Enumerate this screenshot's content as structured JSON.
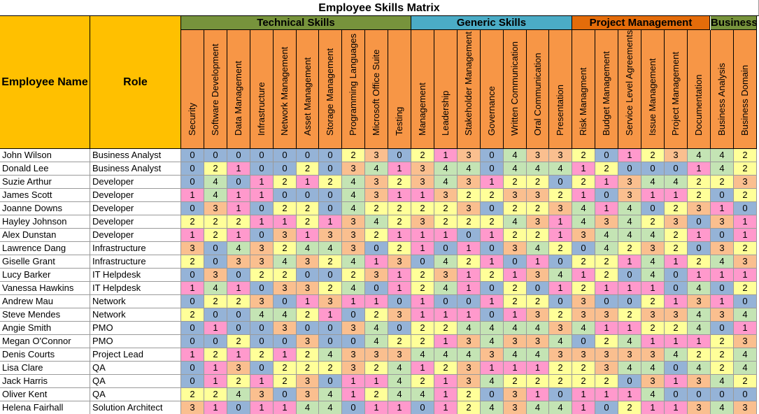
{
  "title": "Employee Skills Matrix",
  "headers": {
    "employee_name": "Employee Name",
    "role": "Role"
  },
  "groups": [
    {
      "label": "Technical Skills",
      "color": "#77933c",
      "span": 10
    },
    {
      "label": "Generic Skills",
      "color": "#4bacc6",
      "span": 7
    },
    {
      "label": "Project Management",
      "color": "#e46c0a",
      "span": 6
    },
    {
      "label": "Business",
      "color": "#77933c",
      "span": 2
    }
  ],
  "skills": [
    "Security",
    "Software Development",
    "Data Management",
    "Infrastructure",
    "Network Management",
    "Asset Management",
    "Storage Management",
    "Programming Languages",
    "Microsoft Office Suite",
    "Testing",
    "Management",
    "Leadership",
    "Stakeholder Management",
    "Governance",
    "Written Communication",
    "Oral Communication",
    "Presentation",
    "Risk Managment",
    "Budget Management",
    "Service Level Agreements",
    "Issue Management",
    "Project Management",
    "Documentation",
    "Business Analysis",
    "Business Domain"
  ],
  "level_colors": {
    "0": "#95b3d7",
    "1": "#ff99cc",
    "2": "#ffff99",
    "3": "#fabf8f",
    "4": "#c4e4b4"
  },
  "rows": [
    {
      "name": "John Wilson",
      "role": "Business Analyst",
      "values": [
        0,
        0,
        0,
        0,
        0,
        0,
        0,
        2,
        3,
        0,
        2,
        1,
        3,
        0,
        4,
        3,
        3,
        2,
        0,
        1,
        2,
        3,
        4,
        4,
        2
      ]
    },
    {
      "name": "Donald Lee",
      "role": "Business Analyst",
      "values": [
        0,
        2,
        1,
        0,
        0,
        2,
        0,
        3,
        4,
        1,
        3,
        4,
        4,
        0,
        4,
        4,
        4,
        1,
        2,
        0,
        0,
        0,
        1,
        4,
        2
      ]
    },
    {
      "name": "Suzie Arthur",
      "role": "Developer",
      "values": [
        0,
        4,
        0,
        1,
        2,
        1,
        2,
        4,
        3,
        2,
        3,
        4,
        3,
        1,
        2,
        2,
        0,
        2,
        1,
        3,
        4,
        4,
        2,
        2,
        3
      ]
    },
    {
      "name": "James Scott",
      "role": "Developer",
      "values": [
        1,
        4,
        1,
        1,
        0,
        0,
        0,
        4,
        3,
        1,
        1,
        3,
        2,
        2,
        3,
        3,
        2,
        1,
        0,
        3,
        1,
        1,
        2,
        0,
        2
      ]
    },
    {
      "name": "Joanne Downs",
      "role": "Developer",
      "values": [
        0,
        3,
        1,
        0,
        2,
        2,
        0,
        4,
        2,
        2,
        2,
        2,
        3,
        0,
        2,
        2,
        3,
        4,
        1,
        4,
        0,
        2,
        3,
        1,
        0
      ]
    },
    {
      "name": "Hayley Johnson",
      "role": "Developer",
      "values": [
        2,
        2,
        2,
        1,
        1,
        2,
        1,
        3,
        4,
        2,
        3,
        2,
        2,
        2,
        4,
        3,
        1,
        4,
        3,
        4,
        2,
        3,
        0,
        3,
        1
      ]
    },
    {
      "name": "Alex Dunstan",
      "role": "Developer",
      "values": [
        1,
        2,
        1,
        0,
        3,
        1,
        3,
        3,
        2,
        1,
        1,
        1,
        0,
        1,
        2,
        2,
        1,
        3,
        4,
        4,
        4,
        2,
        1,
        0,
        1
      ]
    },
    {
      "name": "Lawrence Dang",
      "role": "Infrastructure",
      "values": [
        3,
        0,
        4,
        3,
        2,
        4,
        4,
        3,
        0,
        2,
        1,
        0,
        1,
        0,
        3,
        4,
        2,
        0,
        4,
        2,
        3,
        2,
        0,
        3,
        2
      ]
    },
    {
      "name": "Giselle Grant",
      "role": "Infrastructure",
      "values": [
        2,
        0,
        3,
        3,
        4,
        3,
        2,
        4,
        1,
        3,
        0,
        4,
        2,
        1,
        0,
        1,
        0,
        2,
        2,
        1,
        4,
        1,
        2,
        4,
        3
      ]
    },
    {
      "name": "Lucy Barker",
      "role": "IT Helpdesk",
      "values": [
        0,
        3,
        0,
        2,
        2,
        0,
        0,
        2,
        3,
        1,
        2,
        3,
        1,
        2,
        1,
        3,
        4,
        1,
        2,
        0,
        4,
        0,
        1,
        1,
        1
      ]
    },
    {
      "name": "Vanessa Hawkins",
      "role": "IT Helpdesk",
      "values": [
        1,
        4,
        1,
        0,
        3,
        3,
        2,
        4,
        0,
        1,
        2,
        4,
        1,
        0,
        2,
        0,
        1,
        2,
        1,
        1,
        1,
        0,
        4,
        0,
        2
      ]
    },
    {
      "name": "Andrew Mau",
      "role": "Network",
      "values": [
        0,
        2,
        2,
        3,
        0,
        1,
        3,
        1,
        1,
        0,
        1,
        0,
        0,
        1,
        2,
        2,
        0,
        3,
        0,
        0,
        2,
        1,
        3,
        1,
        0
      ]
    },
    {
      "name": "Steve Mendes",
      "role": "Network",
      "values": [
        2,
        0,
        0,
        4,
        4,
        2,
        1,
        0,
        2,
        3,
        1,
        1,
        1,
        0,
        1,
        3,
        2,
        3,
        3,
        2,
        3,
        3,
        4,
        3,
        4
      ]
    },
    {
      "name": "Angie Smith",
      "role": "PMO",
      "values": [
        0,
        1,
        0,
        0,
        3,
        0,
        0,
        3,
        4,
        0,
        2,
        2,
        4,
        4,
        4,
        4,
        3,
        4,
        1,
        1,
        2,
        2,
        4,
        0,
        1
      ]
    },
    {
      "name": "Megan O'Connor",
      "role": "PMO",
      "values": [
        0,
        0,
        2,
        0,
        0,
        3,
        0,
        0,
        4,
        2,
        2,
        1,
        3,
        4,
        3,
        3,
        4,
        0,
        2,
        4,
        1,
        1,
        1,
        2,
        3
      ]
    },
    {
      "name": "Denis Courts",
      "role": "Project Lead",
      "values": [
        1,
        2,
        1,
        2,
        1,
        2,
        4,
        3,
        3,
        3,
        4,
        4,
        4,
        3,
        4,
        4,
        3,
        3,
        3,
        3,
        3,
        4,
        2,
        2,
        4
      ]
    },
    {
      "name": "Lisa Clare",
      "role": "QA",
      "values": [
        0,
        1,
        3,
        0,
        2,
        2,
        2,
        3,
        2,
        4,
        1,
        2,
        3,
        1,
        1,
        1,
        2,
        2,
        3,
        4,
        4,
        0,
        4,
        2,
        4
      ]
    },
    {
      "name": "Jack Harris",
      "role": "QA",
      "values": [
        0,
        1,
        2,
        1,
        2,
        3,
        0,
        1,
        1,
        4,
        2,
        1,
        3,
        4,
        2,
        2,
        2,
        2,
        2,
        0,
        3,
        1,
        3,
        4,
        2
      ]
    },
    {
      "name": "Oliver Kent",
      "role": "QA",
      "values": [
        2,
        2,
        4,
        3,
        0,
        3,
        4,
        1,
        2,
        4,
        4,
        1,
        2,
        0,
        3,
        1,
        0,
        1,
        1,
        1,
        4,
        0,
        0,
        0,
        0
      ]
    },
    {
      "name": "Helena Fairhall",
      "role": "Solution Architect",
      "values": [
        3,
        1,
        0,
        1,
        1,
        4,
        4,
        0,
        1,
        1,
        0,
        1,
        2,
        4,
        3,
        4,
        4,
        1,
        0,
        2,
        1,
        1,
        3,
        4,
        3
      ]
    }
  ]
}
